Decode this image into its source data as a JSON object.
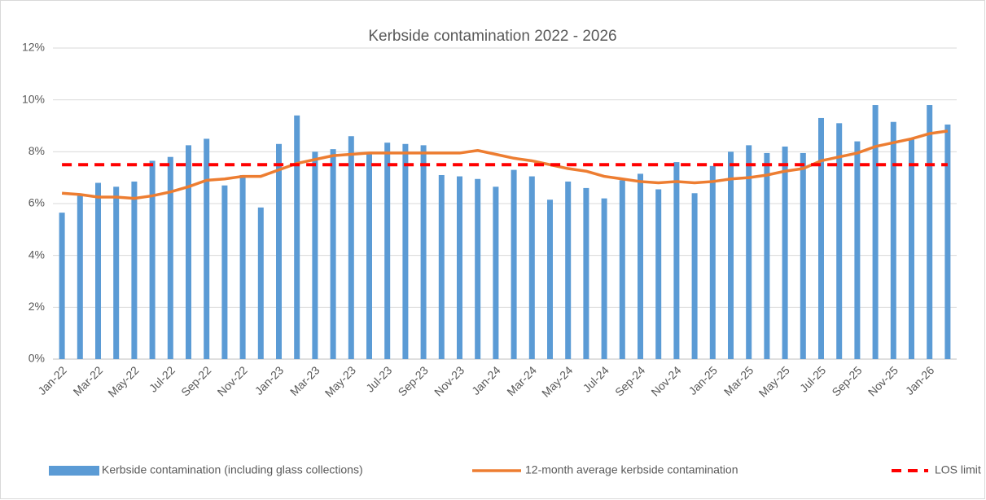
{
  "chart_data": {
    "type": "bar",
    "title": "Kerbside contamination 2022 - 2026",
    "categories": [
      "Jan-22",
      null,
      "Mar-22",
      null,
      "May-22",
      null,
      "Jul-22",
      null,
      "Sep-22",
      null,
      "Nov-22",
      null,
      "Jan-23",
      null,
      "Mar-23",
      null,
      "May-23",
      null,
      "Jul-23",
      null,
      "Sep-23",
      null,
      "Nov-23",
      null,
      "Jan-24",
      null,
      "Mar-24",
      null,
      "May-24",
      null,
      "Jul-24",
      null,
      "Sep-24",
      null,
      "Nov-24",
      null,
      "Jan-25",
      null,
      "Mar-25",
      null,
      "May-25",
      null,
      "Jul-25",
      null,
      "Sep-25",
      null,
      "Nov-25",
      null,
      "Jan-26",
      null
    ],
    "series": [
      {
        "name": "Kerbside contamination (including glass collections)",
        "type": "bar",
        "color": "#5b9bd5",
        "values": [
          5.65,
          6.3,
          6.8,
          6.65,
          6.85,
          7.65,
          7.8,
          8.25,
          8.5,
          6.7,
          7.1,
          5.85,
          8.3,
          9.4,
          8.0,
          8.1,
          8.6,
          7.9,
          8.35,
          8.3,
          8.25,
          7.1,
          7.05,
          6.95,
          6.65,
          7.3,
          7.05,
          6.15,
          6.85,
          6.6,
          6.2,
          6.9,
          7.15,
          6.55,
          7.6,
          6.4,
          7.45,
          8.0,
          8.25,
          7.95,
          8.2,
          7.95,
          9.3,
          9.1,
          8.4,
          9.8,
          9.15,
          8.5,
          9.8,
          9.05
        ]
      },
      {
        "name": "12-month average kerbside contamination",
        "type": "line",
        "color": "#ed7d31",
        "values": [
          6.4,
          6.35,
          6.25,
          6.25,
          6.2,
          6.3,
          6.45,
          6.65,
          6.9,
          6.95,
          7.05,
          7.05,
          7.3,
          7.55,
          7.7,
          7.85,
          7.9,
          7.95,
          7.95,
          7.95,
          7.95,
          7.95,
          7.95,
          8.05,
          7.9,
          7.75,
          7.65,
          7.5,
          7.35,
          7.25,
          7.05,
          6.95,
          6.85,
          6.8,
          6.85,
          6.8,
          6.85,
          6.95,
          7.0,
          7.1,
          7.25,
          7.35,
          7.65,
          7.8,
          7.95,
          8.2,
          8.35,
          8.5,
          8.7,
          8.8
        ]
      },
      {
        "name": "LOS limit",
        "type": "line",
        "dashed": true,
        "color": "#ff0000",
        "values": [
          7.5,
          7.5,
          7.5,
          7.5,
          7.5,
          7.5,
          7.5,
          7.5,
          7.5,
          7.5,
          7.5,
          7.5,
          7.5,
          7.5,
          7.5,
          7.5,
          7.5,
          7.5,
          7.5,
          7.5,
          7.5,
          7.5,
          7.5,
          7.5,
          7.5,
          7.5,
          7.5,
          7.5,
          7.5,
          7.5,
          7.5,
          7.5,
          7.5,
          7.5,
          7.5,
          7.5,
          7.5,
          7.5,
          7.5,
          7.5,
          7.5,
          7.5,
          7.5,
          7.5,
          7.5,
          7.5,
          7.5,
          7.5,
          7.5,
          7.5
        ]
      }
    ],
    "ylim": [
      0,
      12
    ],
    "yticks": [
      {
        "value": 0,
        "label": "0%"
      },
      {
        "value": 2,
        "label": "2%"
      },
      {
        "value": 4,
        "label": "4%"
      },
      {
        "value": 6,
        "label": "6%"
      },
      {
        "value": 8,
        "label": "8%"
      },
      {
        "value": 10,
        "label": "10%"
      },
      {
        "value": 12,
        "label": "12%"
      }
    ],
    "grid": true,
    "legend": "bottom"
  }
}
